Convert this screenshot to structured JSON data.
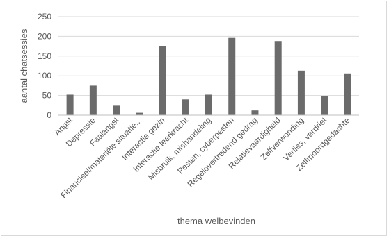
{
  "chart_data": {
    "type": "bar",
    "title": "",
    "xlabel": "thema welbevinden",
    "ylabel": "aantal chatsessies",
    "ylim": [
      0,
      250
    ],
    "yticks": [
      0,
      50,
      100,
      150,
      200,
      250
    ],
    "grid": true,
    "categories": [
      "Angst",
      "Depressie",
      "Faalangst",
      "Financieel/materiële situatie...",
      "Interactie gezin",
      "Interactie leerkracht",
      "Misbruik, mishandeling",
      "Pesten, cyberpesten",
      "Regelovertredend gedrag",
      "Relatievaardigheid",
      "Zelfverwonding",
      "Verlies, verdriet",
      "Zelfmoordgedachte"
    ],
    "values": [
      52,
      75,
      24,
      6,
      176,
      40,
      52,
      196,
      12,
      188,
      113,
      48,
      106
    ],
    "bar_color": "#6b6b6b"
  }
}
